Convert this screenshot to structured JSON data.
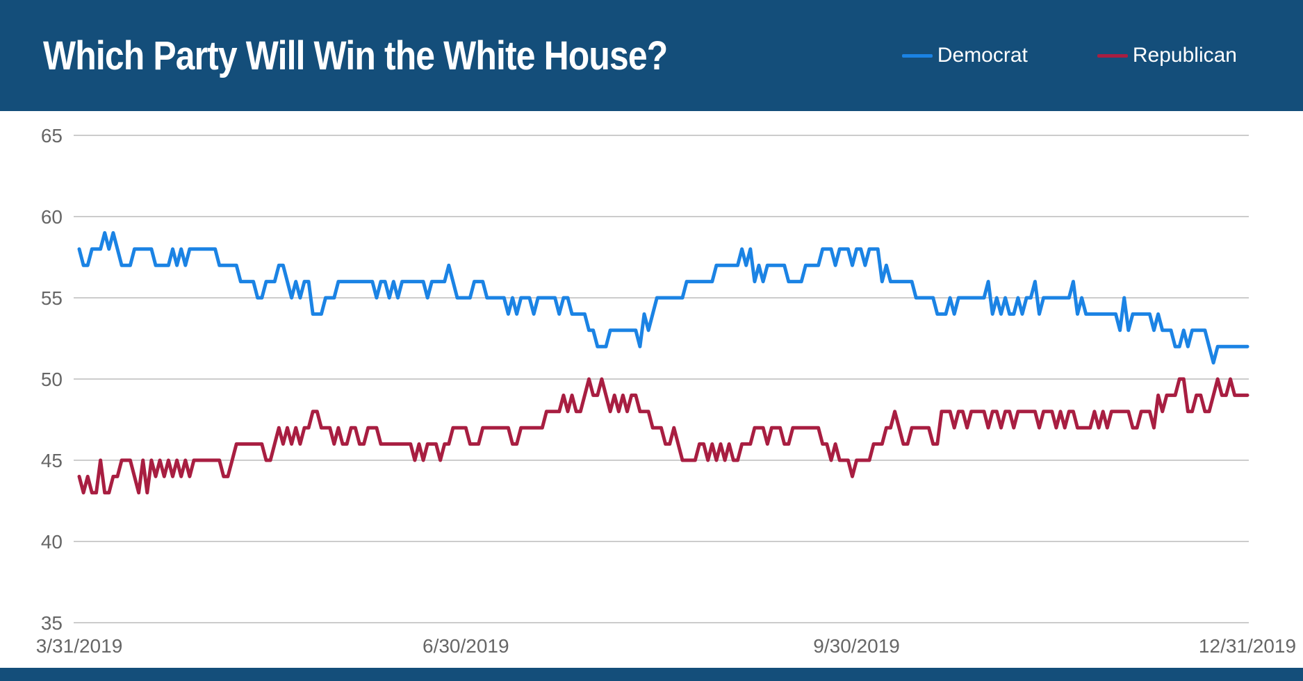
{
  "header": {
    "title": "Which Party Will Win the White House?",
    "background": "#144e7a"
  },
  "footer": {
    "background": "#144e7a"
  },
  "chart_data": {
    "type": "line",
    "title": "Which Party Will Win the White House?",
    "grid": "horizontal",
    "grid_color": "#cccccc",
    "axis_label_color": "#666666",
    "legend_position": "top-right",
    "x_axis": {
      "start_date": "3/31/2019",
      "end_date": "12/31/2019",
      "tick_labels": [
        "3/31/2019",
        "6/30/2019",
        "9/30/2019",
        "12/31/2019"
      ],
      "tick_days": [
        0,
        91,
        183,
        275
      ]
    },
    "y_axis": {
      "ticks": [
        65,
        60,
        55,
        50,
        45,
        40,
        35
      ],
      "min": 35,
      "max": 65
    },
    "series": [
      {
        "name": "Democrat",
        "color": "#1b83e4",
        "values": [
          58,
          57,
          57,
          58,
          58,
          58,
          59,
          58,
          59,
          58,
          57,
          57,
          57,
          58,
          58,
          58,
          58,
          58,
          57,
          57,
          57,
          57,
          58,
          57,
          58,
          57,
          58,
          58,
          58,
          58,
          58,
          58,
          58,
          57,
          57,
          57,
          57,
          57,
          56,
          56,
          56,
          56,
          55,
          55,
          56,
          56,
          56,
          57,
          57,
          56,
          55,
          56,
          55,
          56,
          56,
          54,
          54,
          54,
          55,
          55,
          55,
          56,
          56,
          56,
          56,
          56,
          56,
          56,
          56,
          56,
          55,
          56,
          56,
          55,
          56,
          55,
          56,
          56,
          56,
          56,
          56,
          56,
          55,
          56,
          56,
          56,
          56,
          57,
          56,
          55,
          55,
          55,
          55,
          56,
          56,
          56,
          55,
          55,
          55,
          55,
          55,
          54,
          55,
          54,
          55,
          55,
          55,
          54,
          55,
          55,
          55,
          55,
          55,
          54,
          55,
          55,
          54,
          54,
          54,
          54,
          53,
          53,
          52,
          52,
          52,
          53,
          53,
          53,
          53,
          53,
          53,
          53,
          52,
          54,
          53,
          54,
          55,
          55,
          55,
          55,
          55,
          55,
          55,
          56,
          56,
          56,
          56,
          56,
          56,
          56,
          57,
          57,
          57,
          57,
          57,
          57,
          58,
          57,
          58,
          56,
          57,
          56,
          57,
          57,
          57,
          57,
          57,
          56,
          56,
          56,
          56,
          57,
          57,
          57,
          57,
          58,
          58,
          58,
          57,
          58,
          58,
          58,
          57,
          58,
          58,
          57,
          58,
          58,
          58,
          56,
          57,
          56,
          56,
          56,
          56,
          56,
          56,
          55,
          55,
          55,
          55,
          55,
          54,
          54,
          54,
          55,
          54,
          55,
          55,
          55,
          55,
          55,
          55,
          55,
          56,
          54,
          55,
          54,
          55,
          54,
          54,
          55,
          54,
          55,
          55,
          56,
          54,
          55,
          55,
          55,
          55,
          55,
          55,
          55,
          56,
          54,
          55,
          54,
          54,
          54,
          54,
          54,
          54,
          54,
          54,
          53,
          55,
          53,
          54,
          54,
          54,
          54,
          54,
          53,
          54,
          53,
          53,
          53,
          52,
          52,
          53,
          52,
          53,
          53,
          53,
          53,
          52,
          51,
          52,
          52,
          52,
          52,
          52,
          52,
          52,
          52
        ]
      },
      {
        "name": "Republican",
        "color": "#a81e41",
        "values": [
          44,
          43,
          44,
          43,
          43,
          45,
          43,
          43,
          44,
          44,
          45,
          45,
          45,
          44,
          43,
          45,
          43,
          45,
          44,
          45,
          44,
          45,
          44,
          45,
          44,
          45,
          44,
          45,
          45,
          45,
          45,
          45,
          45,
          45,
          44,
          44,
          45,
          46,
          46,
          46,
          46,
          46,
          46,
          46,
          45,
          45,
          46,
          47,
          46,
          47,
          46,
          47,
          46,
          47,
          47,
          48,
          48,
          47,
          47,
          47,
          46,
          47,
          46,
          46,
          47,
          47,
          46,
          46,
          47,
          47,
          47,
          46,
          46,
          46,
          46,
          46,
          46,
          46,
          46,
          45,
          46,
          45,
          46,
          46,
          46,
          45,
          46,
          46,
          47,
          47,
          47,
          47,
          46,
          46,
          46,
          47,
          47,
          47,
          47,
          47,
          47,
          47,
          46,
          46,
          47,
          47,
          47,
          47,
          47,
          47,
          48,
          48,
          48,
          48,
          49,
          48,
          49,
          48,
          48,
          49,
          50,
          49,
          49,
          50,
          49,
          48,
          49,
          48,
          49,
          48,
          49,
          49,
          48,
          48,
          48,
          47,
          47,
          47,
          46,
          46,
          47,
          46,
          45,
          45,
          45,
          45,
          46,
          46,
          45,
          46,
          45,
          46,
          45,
          46,
          45,
          45,
          46,
          46,
          46,
          47,
          47,
          47,
          46,
          47,
          47,
          47,
          46,
          46,
          47,
          47,
          47,
          47,
          47,
          47,
          47,
          46,
          46,
          45,
          46,
          45,
          45,
          45,
          44,
          45,
          45,
          45,
          45,
          46,
          46,
          46,
          47,
          47,
          48,
          47,
          46,
          46,
          47,
          47,
          47,
          47,
          47,
          46,
          46,
          48,
          48,
          48,
          47,
          48,
          48,
          47,
          48,
          48,
          48,
          48,
          47,
          48,
          48,
          47,
          48,
          48,
          47,
          48,
          48,
          48,
          48,
          48,
          47,
          48,
          48,
          48,
          47,
          48,
          47,
          48,
          48,
          47,
          47,
          47,
          47,
          48,
          47,
          48,
          47,
          48,
          48,
          48,
          48,
          48,
          47,
          47,
          48,
          48,
          48,
          47,
          49,
          48,
          49,
          49,
          49,
          50,
          50,
          48,
          48,
          49,
          49,
          48,
          48,
          49,
          50,
          49,
          49,
          50,
          49,
          49,
          49,
          49
        ]
      }
    ]
  }
}
